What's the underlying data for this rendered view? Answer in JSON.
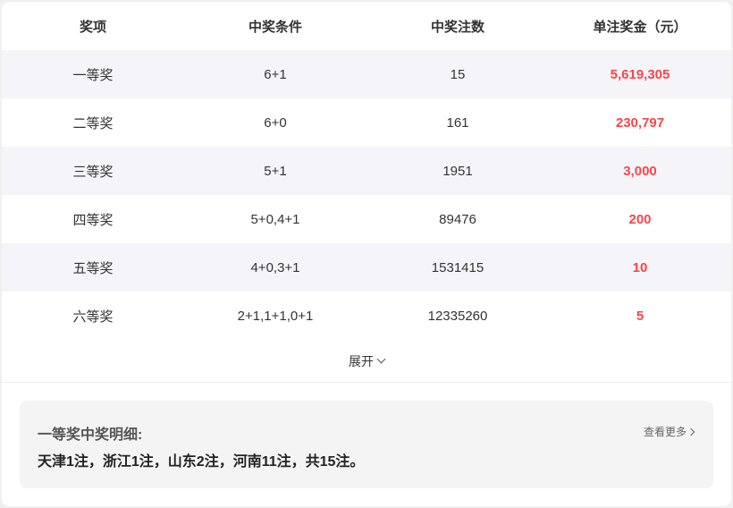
{
  "table": {
    "headers": [
      "奖项",
      "中奖条件",
      "中奖注数",
      "单注奖金（元）"
    ],
    "rows": [
      {
        "tier": "一等奖",
        "condition": "6+1",
        "count": "15",
        "prize": "5,619,305"
      },
      {
        "tier": "二等奖",
        "condition": "6+0",
        "count": "161",
        "prize": "230,797"
      },
      {
        "tier": "三等奖",
        "condition": "5+1",
        "count": "1951",
        "prize": "3,000"
      },
      {
        "tier": "四等奖",
        "condition": "5+0,4+1",
        "count": "89476",
        "prize": "200"
      },
      {
        "tier": "五等奖",
        "condition": "4+0,3+1",
        "count": "1531415",
        "prize": "10"
      },
      {
        "tier": "六等奖",
        "condition": "2+1,1+1,0+1",
        "count": "12335260",
        "prize": "5"
      }
    ],
    "expand_label": "展开"
  },
  "detail": {
    "title": "一等奖中奖明细:",
    "text": "天津1注，浙江1注，山东2注，河南11注，共15注。",
    "more_label": "查看更多"
  },
  "colors": {
    "prize": "#f4474b",
    "alt_row": "#f5f5f9",
    "detail_bg": "#f4f4f4"
  }
}
